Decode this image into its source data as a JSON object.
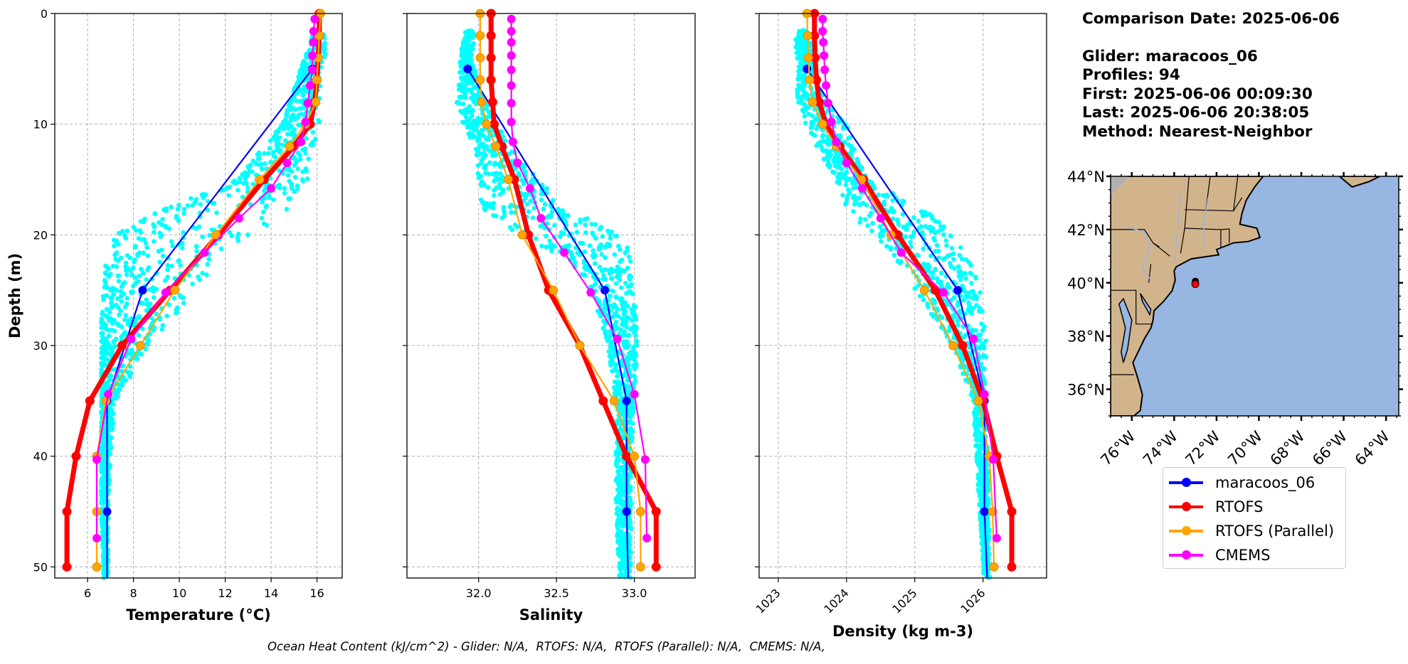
{
  "info": {
    "comparison_date": "Comparison Date: 2025-06-06",
    "glider": "Glider: maracoos_06",
    "profiles": "Profiles: 94",
    "first": "First: 2025-06-06 00:09:30",
    "last": "Last: 2025-06-06 20:38:05",
    "method": "Method: Nearest-Neighbor"
  },
  "footer": "Ocean Heat Content (kJ/cm^2) - Glider: N/A,  RTOFS: N/A,  RTOFS (Parallel): N/A,  CMEMS: N/A,",
  "legend": [
    {
      "label": "maracoos_06",
      "color": "#0000ff"
    },
    {
      "label": "RTOFS",
      "color": "#ff0000"
    },
    {
      "label": "RTOFS (Parallel)",
      "color": "#ffa500"
    },
    {
      "label": "CMEMS",
      "color": "#ff00ff"
    }
  ],
  "chart_data": [
    {
      "type": "line",
      "title": "",
      "xlabel": "Temperature (°C)",
      "ylabel": "Depth (m)",
      "xlim": [
        4.57,
        17.1
      ],
      "ylim": [
        51,
        0
      ],
      "xticks": [
        6,
        8,
        10,
        12,
        14,
        16
      ],
      "yticks": [
        0,
        10,
        20,
        30,
        40,
        50
      ],
      "grid": true,
      "scatter_color": "#00ffff",
      "glider_scatter_envelope": {
        "depth": [
          2,
          5,
          10,
          15,
          18,
          20,
          22,
          25,
          28,
          30,
          35,
          40,
          45,
          50
        ],
        "min": [
          15.8,
          15.3,
          14.5,
          12.5,
          9.0,
          7.2,
          6.8,
          6.7,
          6.6,
          6.6,
          6.6,
          6.6,
          6.6,
          6.7
        ],
        "max": [
          16.6,
          16.2,
          16.1,
          15.6,
          14.8,
          13.3,
          11.8,
          10.7,
          9.5,
          8.7,
          7.2,
          7.0,
          6.9,
          6.9
        ]
      },
      "series": [
        {
          "name": "maracoos_06",
          "color": "#0000ff",
          "depth": [
            5,
            25,
            35,
            45,
            51
          ],
          "values": [
            15.8,
            8.4,
            6.85,
            6.85,
            6.85
          ]
        },
        {
          "name": "RTOFS",
          "color": "#ff0000",
          "depth": [
            0,
            2,
            4,
            6,
            8,
            10,
            12,
            15,
            20,
            25,
            30,
            35,
            40,
            45,
            50
          ],
          "values": [
            16.1,
            16.1,
            16.05,
            16.0,
            15.9,
            15.7,
            15.0,
            13.7,
            11.7,
            9.6,
            7.5,
            6.1,
            5.5,
            5.1,
            5.1
          ]
        },
        {
          "name": "RTOFS (Parallel)",
          "color": "#ffa500",
          "depth": [
            0,
            2,
            4,
            6,
            8,
            10,
            12,
            15,
            20,
            25,
            30,
            35,
            40,
            45,
            50
          ],
          "values": [
            16.15,
            16.1,
            16.05,
            16.0,
            15.95,
            15.5,
            14.8,
            13.5,
            11.6,
            9.8,
            8.3,
            6.8,
            6.4,
            6.4,
            6.4
          ]
        },
        {
          "name": "CMEMS",
          "color": "#ff00ff",
          "depth": [
            0.5,
            1.6,
            2.6,
            3.8,
            5.1,
            6.5,
            8.1,
            9.8,
            11.6,
            13.5,
            15.8,
            18.5,
            21.6,
            25.2,
            29.4,
            34.4,
            40.3,
            47.4
          ],
          "values": [
            15.9,
            15.85,
            15.85,
            15.8,
            15.8,
            15.7,
            15.6,
            15.5,
            15.3,
            14.7,
            14.0,
            12.6,
            11.1,
            9.4,
            7.9,
            6.9,
            6.4,
            6.4
          ]
        }
      ]
    },
    {
      "type": "line",
      "title": "",
      "xlabel": "Salinity",
      "ylabel": "",
      "xlim": [
        31.54,
        33.39
      ],
      "ylim": [
        51,
        0
      ],
      "xticks": [
        "32.0",
        "32.5",
        "33.0"
      ],
      "yticks": [
        0,
        10,
        20,
        30,
        40,
        50
      ],
      "grid": true,
      "scatter_color": "#00ffff",
      "glider_scatter_envelope": {
        "depth": [
          2,
          4,
          6,
          8,
          10,
          12,
          15,
          18,
          20,
          22,
          25,
          30,
          35,
          40,
          45,
          50
        ],
        "min": [
          31.91,
          31.88,
          31.88,
          31.85,
          31.9,
          31.97,
          32.0,
          32.02,
          32.25,
          32.55,
          32.72,
          32.83,
          32.88,
          32.88,
          32.88,
          32.9
        ],
        "max": [
          31.98,
          31.95,
          32.0,
          32.05,
          32.12,
          32.2,
          32.38,
          32.62,
          32.92,
          32.98,
          33.0,
          33.02,
          33.0,
          32.98,
          32.98,
          32.98
        ]
      },
      "series": [
        {
          "name": "maracoos_06",
          "color": "#0000ff",
          "depth": [
            5,
            25,
            35,
            45,
            51
          ],
          "values": [
            31.93,
            32.81,
            32.95,
            32.95,
            32.96
          ]
        },
        {
          "name": "RTOFS",
          "color": "#ff0000",
          "depth": [
            0,
            2,
            4,
            6,
            8,
            10,
            12,
            15,
            20,
            25,
            30,
            35,
            40,
            45,
            50
          ],
          "values": [
            32.08,
            32.08,
            32.08,
            32.08,
            32.09,
            32.1,
            32.15,
            32.23,
            32.32,
            32.45,
            32.65,
            32.8,
            32.95,
            33.14,
            33.14
          ]
        },
        {
          "name": "RTOFS (Parallel)",
          "color": "#ffa500",
          "depth": [
            0,
            2,
            4,
            6,
            8,
            10,
            12,
            15,
            20,
            25,
            30,
            35,
            40,
            45,
            50
          ],
          "values": [
            32.01,
            32.01,
            32.01,
            32.01,
            32.02,
            32.05,
            32.11,
            32.19,
            32.28,
            32.48,
            32.65,
            32.87,
            33.0,
            33.04,
            33.04
          ]
        },
        {
          "name": "CMEMS",
          "color": "#ff00ff",
          "depth": [
            0.5,
            1.6,
            2.6,
            3.8,
            5.1,
            6.5,
            8.1,
            9.8,
            11.6,
            13.5,
            15.8,
            18.5,
            21.6,
            25.2,
            29.4,
            34.4,
            40.3,
            47.4
          ],
          "values": [
            32.21,
            32.21,
            32.21,
            32.21,
            32.21,
            32.21,
            32.21,
            32.21,
            32.22,
            32.25,
            32.33,
            32.4,
            32.55,
            32.72,
            32.89,
            33.0,
            33.07,
            33.08
          ]
        }
      ]
    },
    {
      "type": "line",
      "title": "",
      "xlabel": "Density (kg m-3)",
      "ylabel": "",
      "xlim": [
        1022.72,
        1026.93
      ],
      "ylim": [
        51,
        0
      ],
      "xticks": [
        1023,
        1024,
        1025,
        1026
      ],
      "yticks": [
        0,
        10,
        20,
        30,
        40,
        50
      ],
      "grid": true,
      "scatter_color": "#00ffff",
      "glider_scatter_envelope": {
        "depth": [
          2,
          5,
          8,
          10,
          12,
          15,
          18,
          20,
          22,
          25,
          30,
          35,
          40,
          45,
          50
        ],
        "min": [
          1023.25,
          1023.27,
          1023.28,
          1023.4,
          1023.55,
          1023.85,
          1024.0,
          1024.4,
          1024.7,
          1025.0,
          1025.55,
          1025.85,
          1025.9,
          1025.95,
          1026.0
        ],
        "max": [
          1023.45,
          1023.55,
          1023.7,
          1024.0,
          1024.1,
          1024.3,
          1025.2,
          1025.6,
          1025.8,
          1025.98,
          1026.05,
          1026.03,
          1026.08,
          1026.08,
          1026.1
        ]
      },
      "series": [
        {
          "name": "maracoos_06",
          "color": "#0000ff",
          "depth": [
            5,
            25,
            35,
            45,
            51
          ],
          "values": [
            1023.42,
            1025.63,
            1026.02,
            1026.02,
            1026.06
          ]
        },
        {
          "name": "RTOFS",
          "color": "#ff0000",
          "depth": [
            0,
            2,
            4,
            6,
            8,
            10,
            12,
            15,
            20,
            25,
            30,
            35,
            40,
            45,
            50
          ],
          "values": [
            1023.53,
            1023.53,
            1023.54,
            1023.56,
            1023.6,
            1023.7,
            1023.9,
            1024.25,
            1024.75,
            1025.3,
            1025.7,
            1026.0,
            1026.2,
            1026.42,
            1026.42
          ]
        },
        {
          "name": "RTOFS (Parallel)",
          "color": "#ffa500",
          "depth": [
            0,
            2,
            4,
            6,
            8,
            10,
            12,
            15,
            20,
            25,
            30,
            35,
            40,
            45,
            50
          ],
          "values": [
            1023.42,
            1023.43,
            1023.44,
            1023.46,
            1023.5,
            1023.65,
            1023.85,
            1024.22,
            1024.65,
            1025.14,
            1025.56,
            1025.93,
            1026.09,
            1026.14,
            1026.16
          ]
        },
        {
          "name": "CMEMS",
          "color": "#ff00ff",
          "depth": [
            0.5,
            1.6,
            2.6,
            3.8,
            5.1,
            6.5,
            8.1,
            9.8,
            11.6,
            13.5,
            15.8,
            18.5,
            21.6,
            25.2,
            29.4,
            34.4,
            40.3,
            47.4
          ],
          "values": [
            1023.65,
            1023.65,
            1023.66,
            1023.67,
            1023.68,
            1023.7,
            1023.73,
            1023.78,
            1023.85,
            1024.0,
            1024.23,
            1024.5,
            1024.8,
            1025.42,
            1025.86,
            1026.02,
            1026.15,
            1026.2
          ]
        }
      ]
    },
    {
      "type": "map",
      "title": "",
      "lat_range": [
        35,
        44
      ],
      "lon_range": [
        -77,
        -63.4
      ],
      "lat_ticks": [
        "36°N",
        "38°N",
        "40°N",
        "42°N",
        "44°N"
      ],
      "lon_ticks": [
        "76°W",
        "74°W",
        "72°W",
        "70°W",
        "68°W",
        "66°W",
        "64°W"
      ],
      "land_color": "#d2b48c",
      "ocean_color": "#97b6e1",
      "glider_location": {
        "lat": 39.95,
        "lon": -73.0
      }
    }
  ]
}
